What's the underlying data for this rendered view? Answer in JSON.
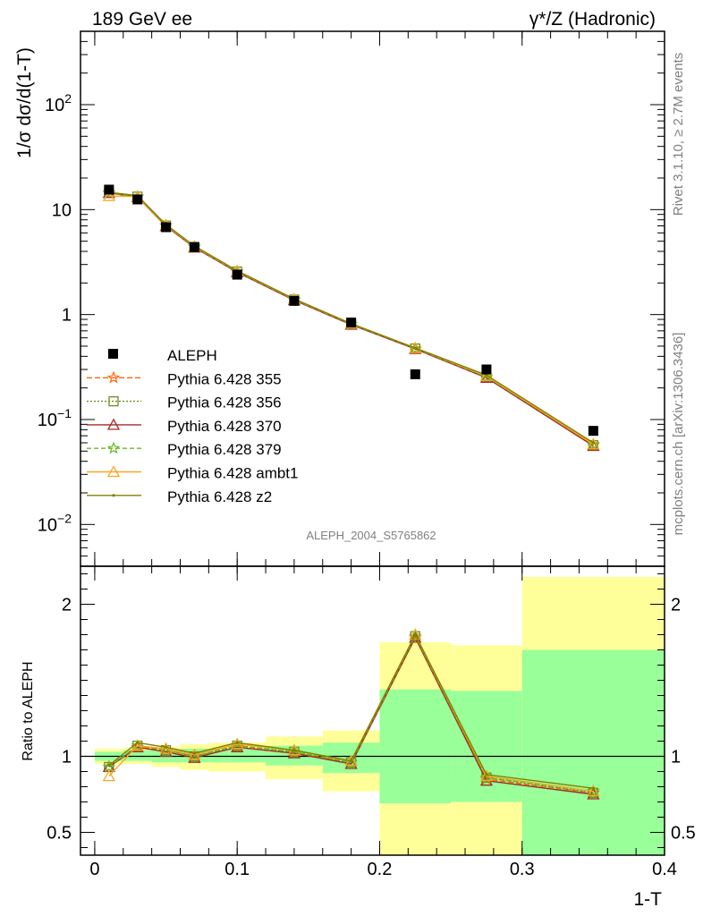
{
  "header": {
    "left": "189 GeV ee",
    "right": "γ*/Z (Hadronic)"
  },
  "side_labels": {
    "rivet": "Rivet 3.1.10, ≥ 2.7M events",
    "mcplots": "mcplots.cern.ch [arXiv:1306.3436]"
  },
  "chart_data": [
    {
      "type": "scatter",
      "panel": "main",
      "ylabel": "1/σ dσ/d(1-T)",
      "yscale": "log",
      "ylim": [
        0.004,
        500
      ],
      "xlim": [
        -0.01,
        0.4
      ],
      "analysis_label": "ALEPH_2004_S5765862",
      "y_ticks": [
        {
          "value": 0.01,
          "base": "10",
          "exp": "−2"
        },
        {
          "value": 0.1,
          "base": "10",
          "exp": "−1"
        },
        {
          "value": 1,
          "base": "1",
          "exp": ""
        },
        {
          "value": 10,
          "base": "10",
          "exp": ""
        },
        {
          "value": 100,
          "base": "10",
          "exp": "2"
        }
      ],
      "x": [
        0.01,
        0.03,
        0.05,
        0.07,
        0.1,
        0.14,
        0.18,
        0.225,
        0.275,
        0.35
      ],
      "data": {
        "name": "ALEPH",
        "values": [
          15.5,
          12.5,
          6.8,
          4.4,
          2.4,
          1.35,
          0.84,
          0.27,
          0.3,
          0.078
        ]
      },
      "series": [
        {
          "name": "Pythia 6.428 355",
          "color": "#ff6600",
          "dash": "6,3",
          "marker": "star",
          "values": [
            14.4,
            13.2,
            7.0,
            4.4,
            2.55,
            1.38,
            0.81,
            0.47,
            0.25,
            0.057
          ]
        },
        {
          "name": "Pythia 6.428 356",
          "color": "#6b8e23",
          "dash": "2,2",
          "marker": "square",
          "values": [
            14.5,
            13.3,
            7.05,
            4.4,
            2.57,
            1.39,
            0.81,
            0.475,
            0.255,
            0.057
          ]
        },
        {
          "name": "Pythia 6.428 370",
          "color": "#a52a2a",
          "dash": "",
          "marker": "triangle",
          "values": [
            14.4,
            13.2,
            6.95,
            4.35,
            2.53,
            1.37,
            0.8,
            0.47,
            0.25,
            0.056
          ]
        },
        {
          "name": "Pythia 6.428 379",
          "color": "#66bb22",
          "dash": "5,3",
          "marker": "star",
          "values": [
            14.5,
            13.3,
            7.05,
            4.4,
            2.57,
            1.39,
            0.81,
            0.475,
            0.255,
            0.058
          ]
        },
        {
          "name": "Pythia 6.428 ambt1",
          "color": "#f5a623",
          "dash": "",
          "marker": "triangle",
          "values": [
            13.5,
            13.3,
            7.1,
            4.45,
            2.6,
            1.4,
            0.82,
            0.48,
            0.26,
            0.058
          ]
        },
        {
          "name": "Pythia 6.428 z2",
          "color": "#808000",
          "dash": "",
          "marker": "dot",
          "values": [
            14.6,
            13.6,
            7.2,
            4.5,
            2.62,
            1.41,
            0.82,
            0.48,
            0.265,
            0.06
          ]
        }
      ]
    },
    {
      "type": "line",
      "panel": "ratio",
      "ylabel": "Ratio to ALEPH",
      "xlabel": "1-T",
      "ylim": [
        0.35,
        2.25
      ],
      "xlim": [
        -0.01,
        0.4
      ],
      "y_ticks": [
        0.5,
        1,
        2
      ],
      "x_ticks": [
        "0",
        "0.1",
        "0.2",
        "0.3",
        "0.4"
      ],
      "x_tick_values": [
        0,
        0.1,
        0.2,
        0.3,
        0.4
      ],
      "bands": [
        {
          "x0": 0.0,
          "x1": 0.02,
          "inner": [
            0.97,
            1.03
          ],
          "outer": [
            0.95,
            1.05
          ]
        },
        {
          "x0": 0.02,
          "x1": 0.04,
          "inner": [
            0.97,
            1.04
          ],
          "outer": [
            0.95,
            1.06
          ]
        },
        {
          "x0": 0.04,
          "x1": 0.06,
          "inner": [
            0.96,
            1.04
          ],
          "outer": [
            0.93,
            1.06
          ]
        },
        {
          "x0": 0.06,
          "x1": 0.08,
          "inner": [
            0.96,
            1.05
          ],
          "outer": [
            0.91,
            1.08
          ]
        },
        {
          "x0": 0.08,
          "x1": 0.12,
          "inner": [
            0.96,
            1.05
          ],
          "outer": [
            0.9,
            1.09
          ]
        },
        {
          "x0": 0.12,
          "x1": 0.16,
          "inner": [
            0.94,
            1.07
          ],
          "outer": [
            0.85,
            1.13
          ]
        },
        {
          "x0": 0.16,
          "x1": 0.2,
          "inner": [
            0.89,
            1.09
          ],
          "outer": [
            0.77,
            1.17
          ]
        },
        {
          "x0": 0.2,
          "x1": 0.25,
          "inner": [
            0.69,
            1.44
          ],
          "outer": [
            0.35,
            1.75
          ]
        },
        {
          "x0": 0.25,
          "x1": 0.3,
          "inner": [
            0.7,
            1.43
          ],
          "outer": [
            0.35,
            1.73
          ]
        },
        {
          "x0": 0.3,
          "x1": 0.4,
          "inner": [
            0.35,
            1.7
          ],
          "outer": [
            0.35,
            2.18
          ]
        }
      ],
      "x": [
        0.01,
        0.03,
        0.05,
        0.07,
        0.1,
        0.14,
        0.18,
        0.225,
        0.275,
        0.35
      ],
      "series": [
        {
          "name": "Pythia 6.428 355",
          "values": [
            0.93,
            1.06,
            1.04,
            1.0,
            1.06,
            1.02,
            0.96,
            1.78,
            0.85,
            0.76
          ]
        },
        {
          "name": "Pythia 6.428 356",
          "values": [
            0.93,
            1.07,
            1.04,
            1.0,
            1.07,
            1.03,
            0.96,
            1.79,
            0.86,
            0.76
          ]
        },
        {
          "name": "Pythia 6.428 370",
          "values": [
            0.93,
            1.06,
            1.03,
            0.99,
            1.06,
            1.02,
            0.95,
            1.78,
            0.84,
            0.75
          ]
        },
        {
          "name": "Pythia 6.428 379",
          "values": [
            0.93,
            1.07,
            1.04,
            1.0,
            1.07,
            1.03,
            0.96,
            1.79,
            0.86,
            0.77
          ]
        },
        {
          "name": "Pythia 6.428 ambt1",
          "values": [
            0.87,
            1.07,
            1.05,
            1.01,
            1.08,
            1.04,
            0.97,
            1.8,
            0.87,
            0.77
          ]
        },
        {
          "name": "Pythia 6.428 z2",
          "values": [
            0.94,
            1.09,
            1.06,
            1.02,
            1.09,
            1.04,
            0.97,
            1.8,
            0.88,
            0.79
          ]
        }
      ]
    }
  ]
}
